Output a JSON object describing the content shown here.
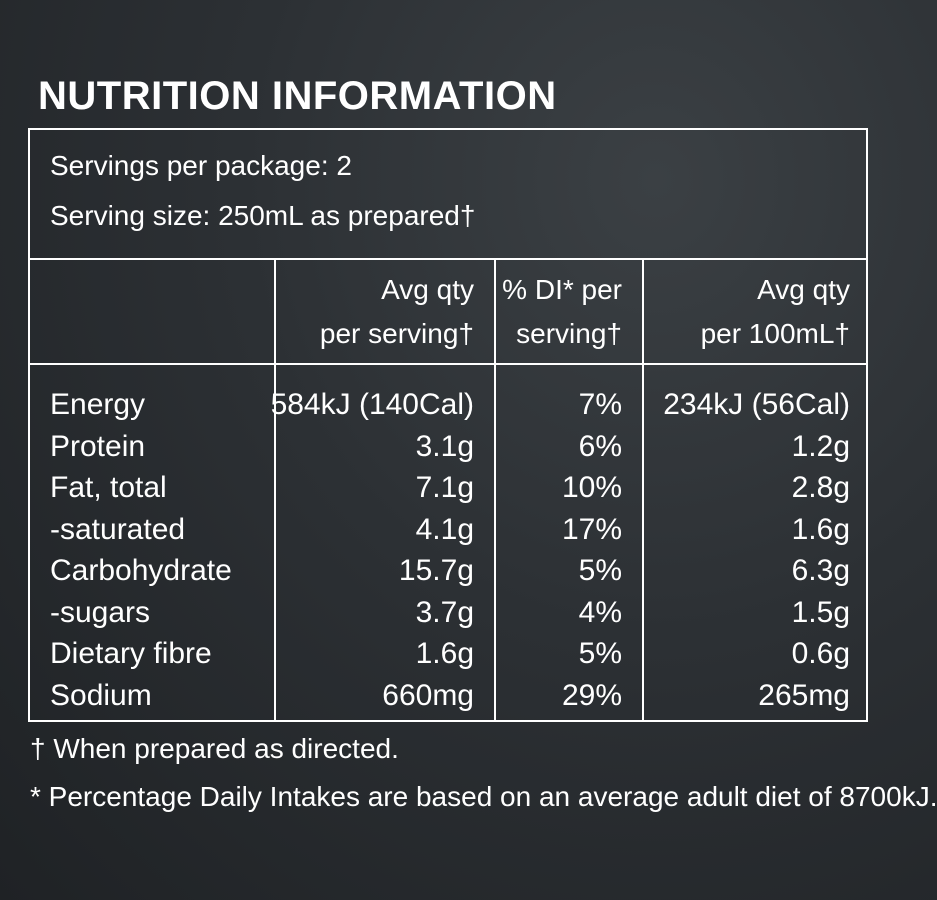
{
  "title": "NUTRITION INFORMATION",
  "servings": {
    "per_package": "Servings per package: 2",
    "serving_size": "Serving size: 250mL as prepared†"
  },
  "columns": {
    "per_serving": [
      "Avg qty",
      "per serving†"
    ],
    "di": [
      "% DI* per",
      "serving†"
    ],
    "per_100": [
      "Avg qty",
      "per 100mL†"
    ]
  },
  "rows": [
    {
      "name": "Energy",
      "per_serving": "584kJ (140Cal)",
      "di": "7%",
      "per_100": "234kJ (56Cal)"
    },
    {
      "name": "Protein",
      "per_serving": "3.1g",
      "di": "6%",
      "per_100": "1.2g"
    },
    {
      "name": "Fat, total",
      "per_serving": "7.1g",
      "di": "10%",
      "per_100": "2.8g"
    },
    {
      "name": "-saturated",
      "per_serving": "4.1g",
      "di": "17%",
      "per_100": "1.6g"
    },
    {
      "name": "Carbohydrate",
      "per_serving": "15.7g",
      "di": "5%",
      "per_100": "6.3g"
    },
    {
      "name": "-sugars",
      "per_serving": "3.7g",
      "di": "4%",
      "per_100": "1.5g"
    },
    {
      "name": "Dietary fibre",
      "per_serving": "1.6g",
      "di": "5%",
      "per_100": "0.6g"
    },
    {
      "name": "Sodium",
      "per_serving": "660mg",
      "di": "29%",
      "per_100": "265mg"
    }
  ],
  "footnotes": [
    "† When prepared as directed.",
    "* Percentage Daily Intakes are based on an average adult diet of 8700kJ."
  ]
}
